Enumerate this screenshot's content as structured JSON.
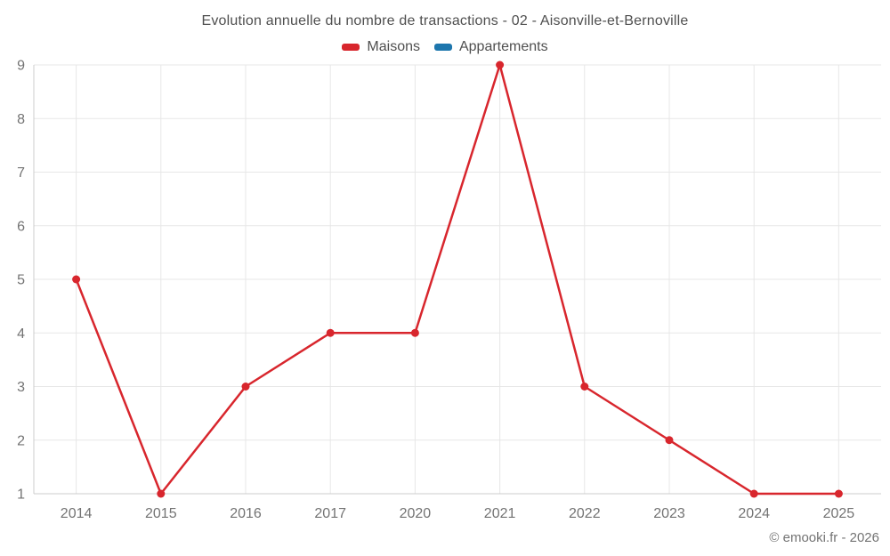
{
  "header": {
    "title": "Evolution annuelle du nombre de transactions - 02 - Aisonville-et-Bernoville"
  },
  "legend": {
    "items": [
      {
        "label": "Maisons",
        "color": "#d8262d"
      },
      {
        "label": "Appartements",
        "color": "#1d76ad"
      }
    ]
  },
  "footer": {
    "copyright": "© emooki.fr - 2026"
  },
  "colors": {
    "grid": "#e7e7e7",
    "axis": "#cccccc",
    "tick_label": "#737373",
    "title": "#4f4f4f",
    "maisons": "#d8262d",
    "appartements": "#1d76ad"
  },
  "chart_data": {
    "type": "line",
    "title": "Evolution annuelle du nombre de transactions - 02 - Aisonville-et-Bernoville",
    "categories": [
      "2014",
      "2015",
      "2016",
      "2017",
      "2020",
      "2021",
      "2022",
      "2023",
      "2024",
      "2025"
    ],
    "series": [
      {
        "name": "Maisons",
        "color": "#d8262d",
        "values": [
          5,
          1,
          3,
          4,
          4,
          9,
          3,
          2,
          1,
          1
        ]
      },
      {
        "name": "Appartements",
        "color": "#1d76ad",
        "values": []
      }
    ],
    "xlabel": "",
    "ylabel": "",
    "ylim": [
      1,
      9
    ],
    "yticks": [
      1,
      2,
      3,
      4,
      5,
      6,
      7,
      8,
      9
    ],
    "grid": true,
    "legend_position": "top"
  }
}
